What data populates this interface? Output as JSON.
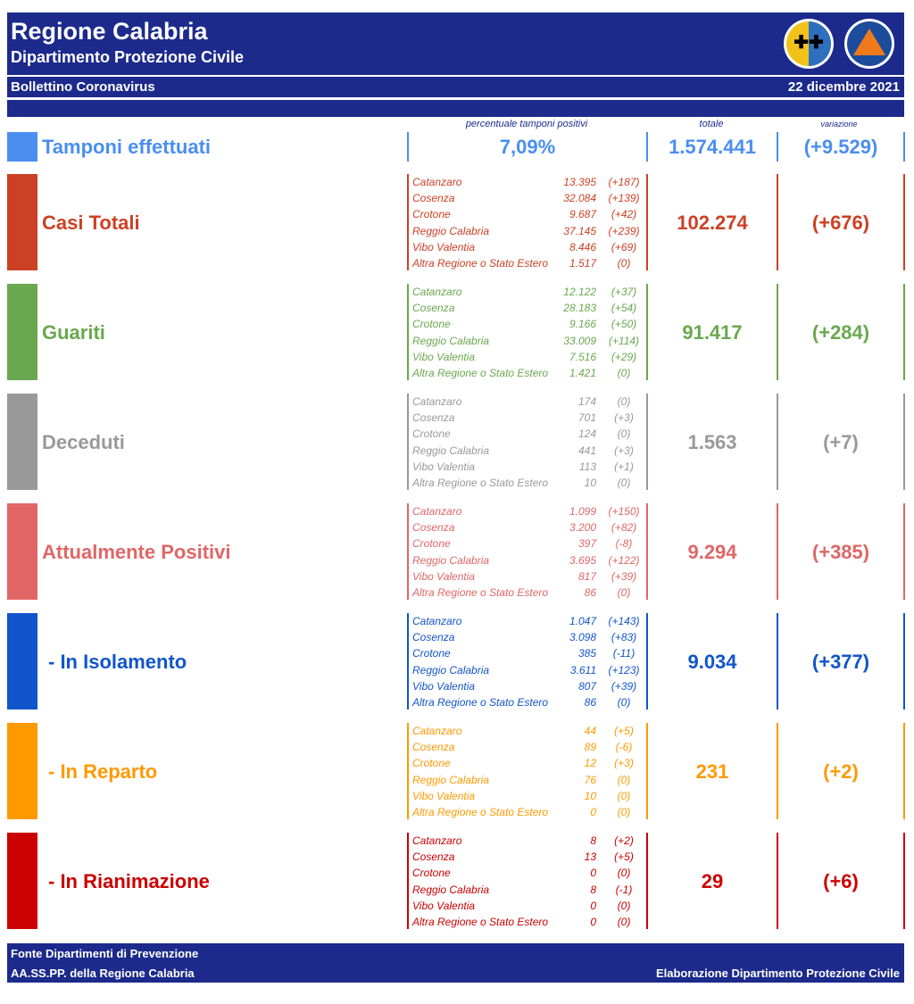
{
  "header": {
    "title": "Regione Calabria",
    "subtitle": "Dipartimento Protezione Civile",
    "bulletin": "Bollettino Coronavirus",
    "date": "22 dicembre 2021"
  },
  "column_headers": {
    "percentage": "percentuale tamponi positivi",
    "total": "totale",
    "variation": "variazione"
  },
  "tests": {
    "label": "Tamponi effettuati",
    "color": "#4a8ef0",
    "percentage": "7,09%",
    "total": "1.574.441",
    "variation": "(+9.529)"
  },
  "sections": [
    {
      "label": "Casi Totali",
      "color": "#cc4125",
      "total": "102.274",
      "variation": "(+676)",
      "rows": [
        {
          "name": "Catanzaro",
          "value": "13.395",
          "change": "(+187)"
        },
        {
          "name": "Cosenza",
          "value": "32.084",
          "change": "(+139)"
        },
        {
          "name": "Crotone",
          "value": "9.687",
          "change": "(+42)"
        },
        {
          "name": "Reggio Calabria",
          "value": "37.145",
          "change": "(+239)"
        },
        {
          "name": "Vibo Valentia",
          "value": "8.446",
          "change": "(+69)"
        },
        {
          "name": "Altra Regione o Stato Estero",
          "value": "1.517",
          "change": "(0)"
        }
      ]
    },
    {
      "label": "Guariti",
      "color": "#6aa84f",
      "total": "91.417",
      "variation": "(+284)",
      "rows": [
        {
          "name": "Catanzaro",
          "value": "12.122",
          "change": "(+37)"
        },
        {
          "name": "Cosenza",
          "value": "28.183",
          "change": "(+54)"
        },
        {
          "name": "Crotone",
          "value": "9.166",
          "change": "(+50)"
        },
        {
          "name": "Reggio Calabria",
          "value": "33.009",
          "change": "(+114)"
        },
        {
          "name": "Vibo Valentia",
          "value": "7.516",
          "change": "(+29)"
        },
        {
          "name": "Altra Regione o Stato Estero",
          "value": "1.421",
          "change": "(0)"
        }
      ]
    },
    {
      "label": "Deceduti",
      "color": "#999999",
      "total": "1.563",
      "variation": "(+7)",
      "rows": [
        {
          "name": "Catanzaro",
          "value": "174",
          "change": "(0)"
        },
        {
          "name": "Cosenza",
          "value": "701",
          "change": "(+3)"
        },
        {
          "name": "Crotone",
          "value": "124",
          "change": "(0)"
        },
        {
          "name": "Reggio Calabria",
          "value": "441",
          "change": "(+3)"
        },
        {
          "name": "Vibo Valentia",
          "value": "113",
          "change": "(+1)"
        },
        {
          "name": "Altra Regione o Stato Estero",
          "value": "10",
          "change": "(0)"
        }
      ]
    },
    {
      "label": "Attualmente Positivi",
      "color": "#e06666",
      "total": "9.294",
      "variation": "(+385)",
      "rows": [
        {
          "name": "Catanzaro",
          "value": "1.099",
          "change": "(+150)"
        },
        {
          "name": "Cosenza",
          "value": "3.200",
          "change": "(+82)"
        },
        {
          "name": "Crotone",
          "value": "397",
          "change": "(-8)"
        },
        {
          "name": "Reggio Calabria",
          "value": "3.695",
          "change": "(+122)"
        },
        {
          "name": "Vibo Valentia",
          "value": "817",
          "change": "(+39)"
        },
        {
          "name": "Altra Regione o Stato Estero",
          "value": "86",
          "change": "(0)"
        }
      ]
    },
    {
      "label": "- In Isolamento",
      "color": "#1155cc",
      "total": "9.034",
      "variation": "(+377)",
      "rows": [
        {
          "name": "Catanzaro",
          "value": "1.047",
          "change": "(+143)"
        },
        {
          "name": "Cosenza",
          "value": "3.098",
          "change": "(+83)"
        },
        {
          "name": "Crotone",
          "value": "385",
          "change": "(-11)"
        },
        {
          "name": "Reggio Calabria",
          "value": "3.611",
          "change": "(+123)"
        },
        {
          "name": "Vibo Valentia",
          "value": "807",
          "change": "(+39)"
        },
        {
          "name": "Altra Regione o Stato Estero",
          "value": "86",
          "change": "(0)"
        }
      ]
    },
    {
      "label": "- In Reparto",
      "color": "#ff9900",
      "total": "231",
      "variation": "(+2)",
      "rows": [
        {
          "name": "Catanzaro",
          "value": "44",
          "change": "(+5)"
        },
        {
          "name": "Cosenza",
          "value": "89",
          "change": "(-6)"
        },
        {
          "name": "Crotone",
          "value": "12",
          "change": "(+3)"
        },
        {
          "name": "Reggio Calabria",
          "value": "76",
          "change": "(0)"
        },
        {
          "name": "Vibo Valentia",
          "value": "10",
          "change": "(0)"
        },
        {
          "name": "Altra Regione o Stato Estero",
          "value": "0",
          "change": "(0)"
        }
      ]
    },
    {
      "label": "- In Rianimazione",
      "color": "#cc0000",
      "total": "29",
      "variation": "(+6)",
      "rows": [
        {
          "name": "Catanzaro",
          "value": "8",
          "change": "(+2)"
        },
        {
          "name": "Cosenza",
          "value": "13",
          "change": "(+5)"
        },
        {
          "name": "Crotone",
          "value": "0",
          "change": "(0)"
        },
        {
          "name": "Reggio Calabria",
          "value": "8",
          "change": "(-1)"
        },
        {
          "name": "Vibo Valentia",
          "value": "0",
          "change": "(0)"
        },
        {
          "name": "Altra Regione o Stato Estero",
          "value": "0",
          "change": "(0)"
        }
      ]
    }
  ],
  "footer": {
    "line1": "Fonte Dipartimenti di Prevenzione",
    "line2": "AA.SS.PP.  della Regione Calabria",
    "credit": "Elaborazione Dipartimento Protezione Civile"
  }
}
